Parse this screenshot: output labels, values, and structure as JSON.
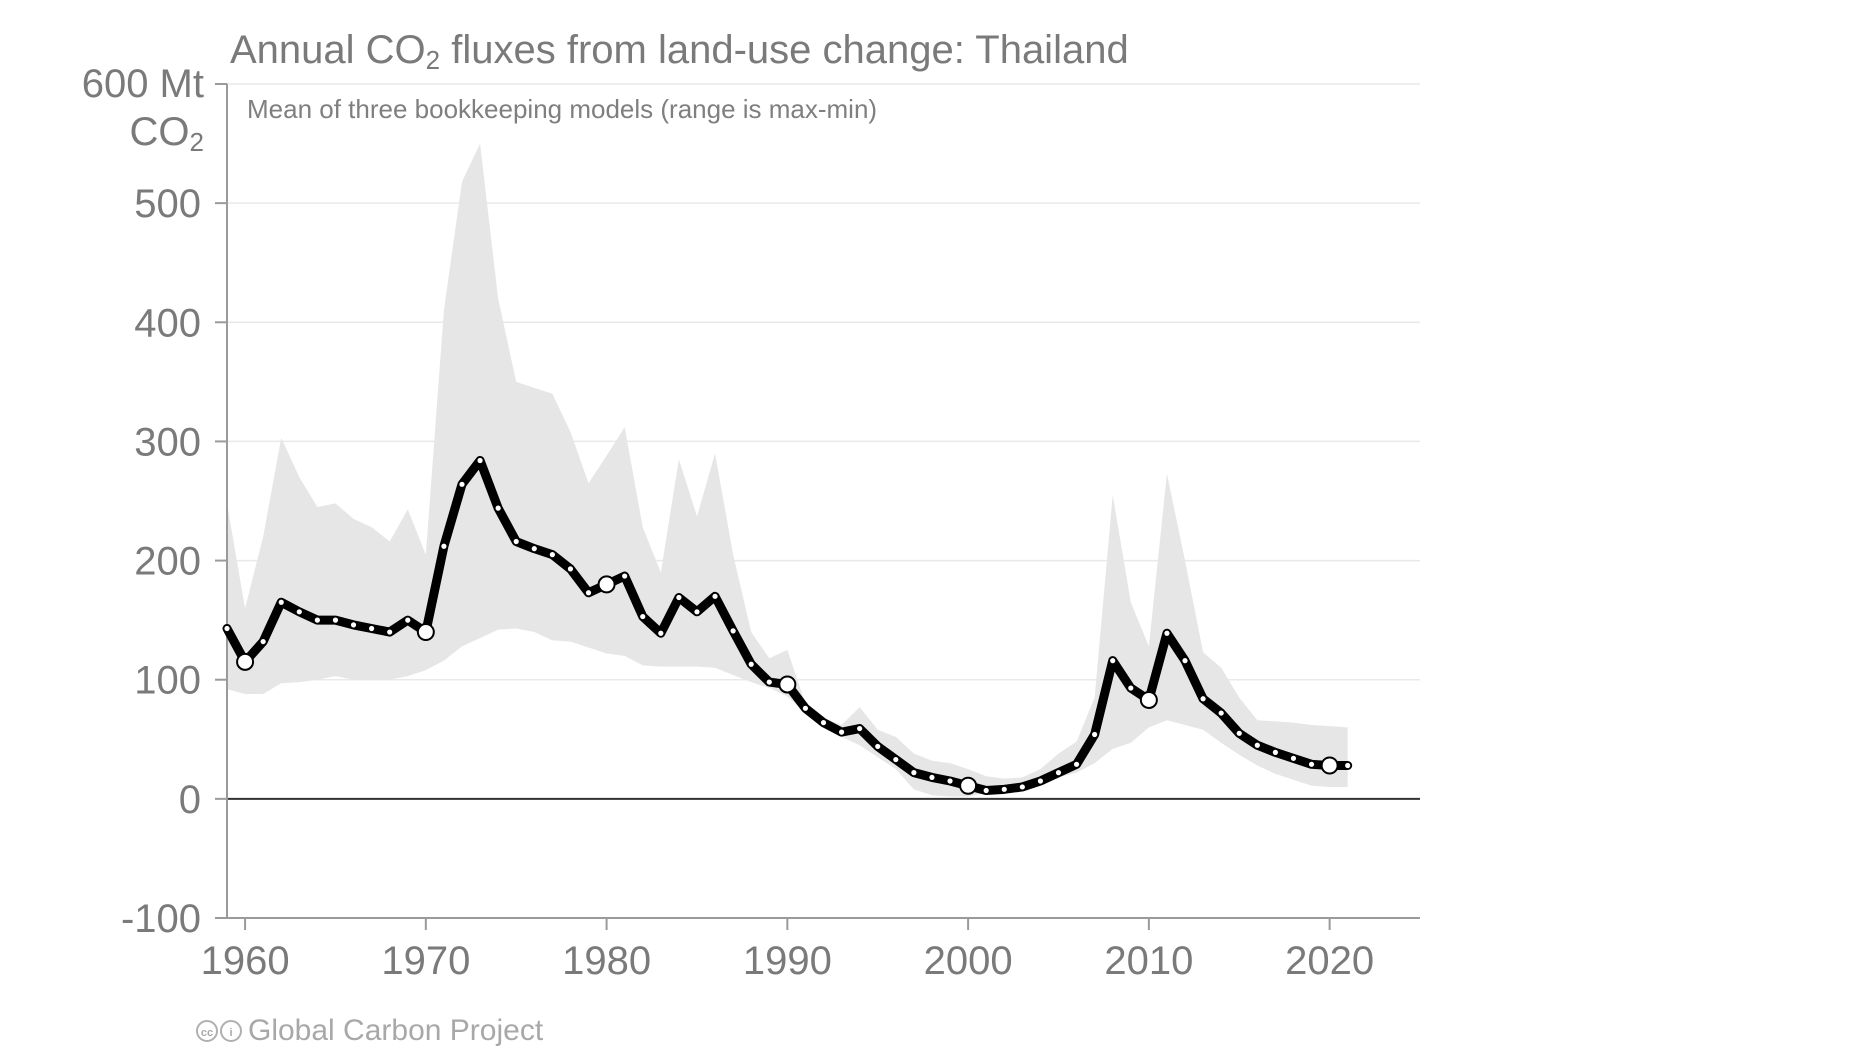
{
  "chart_data": {
    "type": "line",
    "title_parts": {
      "pre": "Annual CO",
      "sub": "2",
      "post": " fluxes from land-use change: Thailand"
    },
    "subtitle": "Mean of three bookkeeping models (range is max-min)",
    "unit_top": "600 Mt",
    "unit_bottom": "CO",
    "unit_sub": "2",
    "ylim": [
      -100,
      600
    ],
    "xlim": [
      1959,
      2025
    ],
    "yticks": [
      {
        "value": -100,
        "label": "-100"
      },
      {
        "value": 0,
        "label": "0"
      },
      {
        "value": 100,
        "label": "100"
      },
      {
        "value": 200,
        "label": "200"
      },
      {
        "value": 300,
        "label": "300"
      },
      {
        "value": 400,
        "label": "400"
      },
      {
        "value": 500,
        "label": "500"
      }
    ],
    "xticks": [
      1960,
      1970,
      1980,
      1990,
      2000,
      2010,
      2020
    ],
    "grid": true,
    "colors": {
      "mean_line": "#000000",
      "range_band": "#e6e6e6",
      "text": "#7a7a7a",
      "zero_line": "#333333"
    },
    "x": [
      1959,
      1960,
      1961,
      1962,
      1963,
      1964,
      1965,
      1966,
      1967,
      1968,
      1969,
      1970,
      1971,
      1972,
      1973,
      1974,
      1975,
      1976,
      1977,
      1978,
      1979,
      1980,
      1981,
      1982,
      1983,
      1984,
      1985,
      1986,
      1987,
      1988,
      1989,
      1990,
      1991,
      1992,
      1993,
      1994,
      1995,
      1996,
      1997,
      1998,
      1999,
      2000,
      2001,
      2002,
      2003,
      2004,
      2005,
      2006,
      2007,
      2008,
      2009,
      2010,
      2011,
      2012,
      2013,
      2014,
      2015,
      2016,
      2017,
      2018,
      2019,
      2020,
      2021
    ],
    "series": [
      {
        "values": [
          143,
          115,
          132,
          165,
          157,
          150,
          150,
          146,
          143,
          140,
          150,
          140,
          212,
          264,
          284,
          244,
          216,
          210,
          205,
          193,
          173,
          180,
          187,
          153,
          139,
          169,
          157,
          170,
          141,
          113,
          98,
          96,
          76,
          64,
          56,
          59,
          44,
          33,
          22,
          18,
          15,
          11,
          7,
          8,
          10,
          15,
          22,
          29,
          54,
          116,
          93,
          83,
          139,
          116,
          84,
          72,
          55,
          45,
          39,
          34,
          29,
          28,
          28
        ]
      }
    ],
    "range_upper": [
      248,
      160,
      220,
      303,
      270,
      245,
      248,
      235,
      228,
      216,
      243,
      205,
      410,
      518,
      550,
      420,
      350,
      345,
      340,
      308,
      265,
      288,
      312,
      228,
      190,
      285,
      237,
      290,
      205,
      140,
      118,
      125,
      80,
      68,
      62,
      77,
      58,
      52,
      38,
      32,
      30,
      25,
      19,
      17,
      18,
      25,
      38,
      48,
      85,
      255,
      165,
      128,
      273,
      200,
      123,
      110,
      85,
      66,
      65,
      64,
      62,
      61,
      60
    ],
    "range_lower": [
      92,
      88,
      88,
      97,
      98,
      100,
      103,
      100,
      100,
      100,
      103,
      108,
      116,
      128,
      135,
      142,
      143,
      140,
      133,
      132,
      127,
      122,
      120,
      112,
      111,
      111,
      111,
      110,
      104,
      98,
      93,
      86,
      72,
      62,
      52,
      45,
      35,
      25,
      8,
      3,
      2,
      2,
      5,
      8,
      9,
      12,
      18,
      22,
      30,
      42,
      47,
      60,
      66,
      62,
      58,
      47,
      37,
      28,
      21,
      16,
      11,
      10,
      10
    ]
  },
  "credit_text": "Global Carbon Project",
  "credit_icons": [
    "cc-icon",
    "by-icon"
  ]
}
